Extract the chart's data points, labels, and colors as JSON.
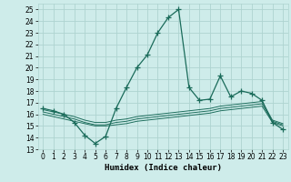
{
  "xlabel": "Humidex (Indice chaleur)",
  "xlim": [
    -0.5,
    23.5
  ],
  "ylim": [
    13,
    25.5
  ],
  "yticks": [
    13,
    14,
    15,
    16,
    17,
    18,
    19,
    20,
    21,
    22,
    23,
    24,
    25
  ],
  "xticks": [
    0,
    1,
    2,
    3,
    4,
    5,
    6,
    7,
    8,
    9,
    10,
    11,
    12,
    13,
    14,
    15,
    16,
    17,
    18,
    19,
    20,
    21,
    22,
    23
  ],
  "bg_color": "#ceecea",
  "grid_color": "#aed4d0",
  "line_color": "#1a6b5a",
  "main_data": [
    16.5,
    16.3,
    16.0,
    15.3,
    14.2,
    13.5,
    14.1,
    16.5,
    18.3,
    20.0,
    21.1,
    23.0,
    24.3,
    25.0,
    18.3,
    17.2,
    17.3,
    19.3,
    17.5,
    18.0,
    17.8,
    17.2,
    15.3,
    14.7
  ],
  "line2_data": [
    16.0,
    15.8,
    15.6,
    15.4,
    15.2,
    15.0,
    15.0,
    15.1,
    15.2,
    15.4,
    15.5,
    15.6,
    15.7,
    15.8,
    15.9,
    16.0,
    16.1,
    16.3,
    16.4,
    16.5,
    16.6,
    16.7,
    15.3,
    15.0
  ],
  "line3_data": [
    16.2,
    16.0,
    15.8,
    15.6,
    15.3,
    15.1,
    15.1,
    15.3,
    15.4,
    15.6,
    15.7,
    15.8,
    15.9,
    16.0,
    16.1,
    16.2,
    16.3,
    16.5,
    16.6,
    16.7,
    16.8,
    16.9,
    15.4,
    15.1
  ],
  "line4_data": [
    16.4,
    16.2,
    16.0,
    15.8,
    15.5,
    15.3,
    15.3,
    15.5,
    15.6,
    15.8,
    15.9,
    16.0,
    16.1,
    16.2,
    16.3,
    16.4,
    16.5,
    16.7,
    16.8,
    16.9,
    17.0,
    17.1,
    15.5,
    15.2
  ],
  "marker": "+",
  "markersize": 4,
  "linewidth": 0.9,
  "tick_fontsize": 5.5,
  "label_fontsize": 6.5
}
